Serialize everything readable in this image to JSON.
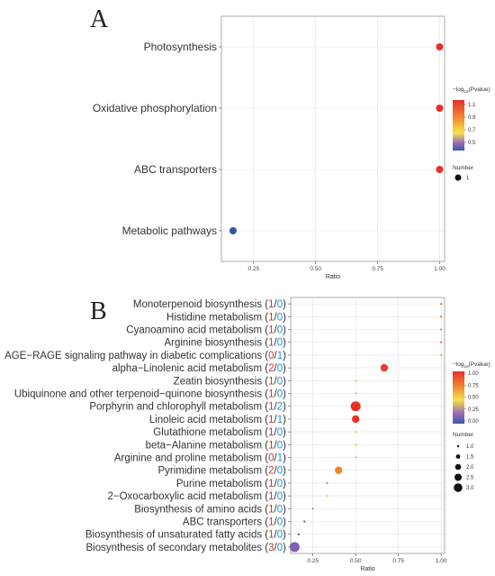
{
  "chart_data": [
    {
      "type": "scatter",
      "panel_label": "A",
      "xlabel": "Ratio",
      "xlim": [
        0.12,
        1.02
      ],
      "xticks": [
        "0.25",
        "0.50",
        "0.75",
        "1.00"
      ],
      "grid": true,
      "categories": [
        "Photosynthesis",
        "Oxidative phosphorylation",
        "ABC transporters",
        "Metabolic pathways"
      ],
      "points": [
        {
          "ratio": 1.0,
          "pvalue_log": 1.12,
          "number": 1,
          "color": "#e8302a"
        },
        {
          "ratio": 1.0,
          "pvalue_log": 1.12,
          "number": 1,
          "color": "#e8302a"
        },
        {
          "ratio": 1.0,
          "pvalue_log": 1.12,
          "number": 1,
          "color": "#e8302a"
        },
        {
          "ratio": 0.167,
          "pvalue_log": 0.35,
          "number": 1,
          "color": "#2e58a8"
        }
      ],
      "color_legend": {
        "title_prefix": "−log",
        "title_sub": "10",
        "title_suffix": "(Pvalue)",
        "ticks": [
          "1.1",
          "0.9",
          "0.7",
          "0.5"
        ]
      },
      "size_legend": {
        "title": "Number",
        "values": [
          "1"
        ]
      }
    },
    {
      "type": "scatter",
      "panel_label": "B",
      "xlabel": "Ratio",
      "xlim": [
        0.12,
        1.02
      ],
      "xticks": [
        "0.25",
        "0.50",
        "0.75",
        "1.00"
      ],
      "grid": true,
      "categories": [
        {
          "name": "Monoterpenoid biosynthesis",
          "up": "1",
          "down": "0"
        },
        {
          "name": "Histidine metabolism",
          "up": "1",
          "down": "0"
        },
        {
          "name": "Cyanoamino acid metabolism",
          "up": "1",
          "down": "0"
        },
        {
          "name": "Arginine biosynthesis",
          "up": "1",
          "down": "0"
        },
        {
          "name": "AGE−RAGE signaling pathway in diabetic complications",
          "up": "0",
          "down": "1"
        },
        {
          "name": "alpha−Linolenic acid metabolism",
          "up": "2",
          "down": "0"
        },
        {
          "name": "Zeatin biosynthesis",
          "up": "1",
          "down": "0"
        },
        {
          "name": "Ubiquinone and other terpenoid−quinone biosynthesis",
          "up": "1",
          "down": "0"
        },
        {
          "name": "Porphyrin and chlorophyll metabolism",
          "up": "1",
          "down": "2"
        },
        {
          "name": "Linoleic acid metabolism",
          "up": "1",
          "down": "1"
        },
        {
          "name": "Glutathione metabolism",
          "up": "1",
          "down": "0"
        },
        {
          "name": "beta−Alanine metabolism",
          "up": "1",
          "down": "0"
        },
        {
          "name": "Arginine and proline metabolism",
          "up": "0",
          "down": "1"
        },
        {
          "name": "Pyrimidine metabolism",
          "up": "2",
          "down": "0"
        },
        {
          "name": "Purine metabolism",
          "up": "1",
          "down": "0"
        },
        {
          "name": "2−Oxocarboxylic acid metabolism",
          "up": "1",
          "down": "0"
        },
        {
          "name": "Biosynthesis of amino acids",
          "up": "1",
          "down": "0"
        },
        {
          "name": "ABC transporters",
          "up": "1",
          "down": "0"
        },
        {
          "name": "Biosynthesis of unsaturated fatty acids",
          "up": "1",
          "down": "0"
        },
        {
          "name": "Biosynthesis of secondary metabolites",
          "up": "3",
          "down": "0"
        }
      ],
      "points": [
        {
          "ratio": 1.0,
          "pvalue_log": 0.95,
          "number": 1,
          "color": "#f07030"
        },
        {
          "ratio": 1.0,
          "pvalue_log": 0.95,
          "number": 1,
          "color": "#f07030"
        },
        {
          "ratio": 1.0,
          "pvalue_log": 0.95,
          "number": 1,
          "color": "#f07030"
        },
        {
          "ratio": 1.0,
          "pvalue_log": 0.95,
          "number": 1,
          "color": "#f07030"
        },
        {
          "ratio": 1.0,
          "pvalue_log": 0.6,
          "number": 1,
          "color": "#f2a040"
        },
        {
          "ratio": 0.667,
          "pvalue_log": 1.0,
          "number": 2,
          "color": "#e8402a"
        },
        {
          "ratio": 0.5,
          "pvalue_log": 0.55,
          "number": 1,
          "color": "#d8d050"
        },
        {
          "ratio": 0.5,
          "pvalue_log": 0.55,
          "number": 1,
          "color": "#d8d050"
        },
        {
          "ratio": 0.5,
          "pvalue_log": 1.05,
          "number": 3,
          "color": "#e8302a"
        },
        {
          "ratio": 0.5,
          "pvalue_log": 1.0,
          "number": 2,
          "color": "#e8302a"
        },
        {
          "ratio": 0.5,
          "pvalue_log": 0.55,
          "number": 1,
          "color": "#d8d050"
        },
        {
          "ratio": 0.5,
          "pvalue_log": 0.55,
          "number": 1,
          "color": "#d8d050"
        },
        {
          "ratio": 0.5,
          "pvalue_log": 0.55,
          "number": 1,
          "color": "#d8d050"
        },
        {
          "ratio": 0.4,
          "pvalue_log": 0.85,
          "number": 2,
          "color": "#f08a2a"
        },
        {
          "ratio": 0.333,
          "pvalue_log": 0.35,
          "number": 1,
          "color": "#5aa0a0"
        },
        {
          "ratio": 0.333,
          "pvalue_log": 0.5,
          "number": 1,
          "color": "#d8d050"
        },
        {
          "ratio": 0.25,
          "pvalue_log": 0.3,
          "number": 1,
          "color": "#5aa0a0"
        },
        {
          "ratio": 0.2,
          "pvalue_log": 0.1,
          "number": 1,
          "color": "#3a6ab0"
        },
        {
          "ratio": 0.167,
          "pvalue_log": 0.05,
          "number": 1,
          "color": "#3a5aa8"
        },
        {
          "ratio": 0.143,
          "pvalue_log": 0.2,
          "number": 3,
          "color": "#8060b0"
        }
      ],
      "color_legend": {
        "title_prefix": "−log",
        "title_sub": "10",
        "title_suffix": "(Pvalue)",
        "ticks": [
          "1.00",
          "0.75",
          "0.50",
          "0.25",
          "0.00"
        ]
      },
      "size_legend": {
        "title": "Number",
        "values": [
          "1.0",
          "1.5",
          "2.0",
          "2.5",
          "3.0"
        ]
      }
    }
  ],
  "colors": {
    "up": "#d93025",
    "down": "#1f8fd1",
    "grid": "#e3e3e3",
    "border": "#888888"
  }
}
